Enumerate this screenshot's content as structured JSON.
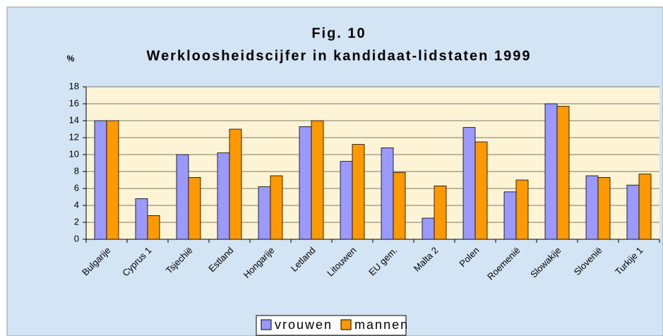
{
  "chart_data": {
    "type": "bar",
    "title": "Fig. 10",
    "subtitle": "Werkloosheidscijfer in kandidaat-lidstaten 1999",
    "y_label": "%",
    "categories": [
      "Bulgarije",
      "Cyprus 1",
      "Tsjechië",
      "Estland",
      "Hongarije",
      "Letland",
      "Litouwen",
      "EU gem.",
      "Malta 2",
      "Polen",
      "Roemenië",
      "Slowakije",
      "Slovenië",
      "Turkije 1"
    ],
    "series": [
      {
        "name": "vrouwen",
        "color": "#9999ff",
        "values": [
          14.0,
          4.8,
          10.0,
          10.2,
          6.2,
          13.3,
          9.2,
          10.8,
          2.5,
          13.2,
          5.6,
          16.0,
          7.5,
          6.4
        ]
      },
      {
        "name": "mannen",
        "color": "#ff9900",
        "values": [
          14.0,
          2.8,
          7.3,
          13.0,
          7.5,
          14.0,
          11.2,
          7.9,
          6.3,
          11.5,
          7.0,
          15.7,
          7.3,
          7.7
        ]
      }
    ],
    "ylim": [
      0,
      18
    ],
    "yticks": [
      0,
      2,
      4,
      6,
      8,
      10,
      12,
      14,
      16,
      18
    ],
    "grid": true,
    "legend": "bottom"
  }
}
